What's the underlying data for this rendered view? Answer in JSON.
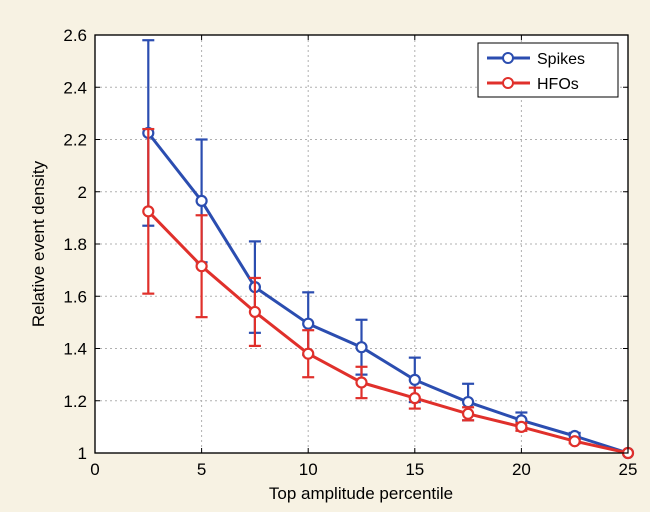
{
  "chart_data": {
    "type": "line",
    "xlabel": "Top amplitude percentile",
    "ylabel": "Relative event density",
    "xlim": [
      0,
      25
    ],
    "ylim": [
      1,
      2.6
    ],
    "xticks": [
      "0",
      "5",
      "10",
      "15",
      "20",
      "25"
    ],
    "yticks": [
      "1",
      "1.2",
      "1.4",
      "1.6",
      "1.8",
      "2",
      "2.2",
      "2.4",
      "2.6"
    ],
    "grid": true,
    "legend_position": "top-right",
    "x": [
      2.5,
      5,
      7.5,
      10,
      12.5,
      15,
      17.5,
      20,
      22.5,
      25
    ],
    "series": [
      {
        "name": "Spikes",
        "color": "#2b4db0",
        "marker": "open-circle",
        "values": [
          2.225,
          1.965,
          1.635,
          1.495,
          1.405,
          1.28,
          1.195,
          1.125,
          1.065,
          1.0
        ],
        "error": [
          0.355,
          0.235,
          0.175,
          0.12,
          0.105,
          0.085,
          0.07,
          0.03,
          0.012,
          0.0
        ]
      },
      {
        "name": "HFOs",
        "color": "#e0302b",
        "marker": "open-circle",
        "values": [
          1.925,
          1.715,
          1.54,
          1.38,
          1.27,
          1.21,
          1.15,
          1.1,
          1.045,
          1.0
        ],
        "error": [
          0.315,
          0.195,
          0.13,
          0.09,
          0.06,
          0.04,
          0.025,
          0.015,
          0.008,
          0.0
        ]
      }
    ]
  }
}
